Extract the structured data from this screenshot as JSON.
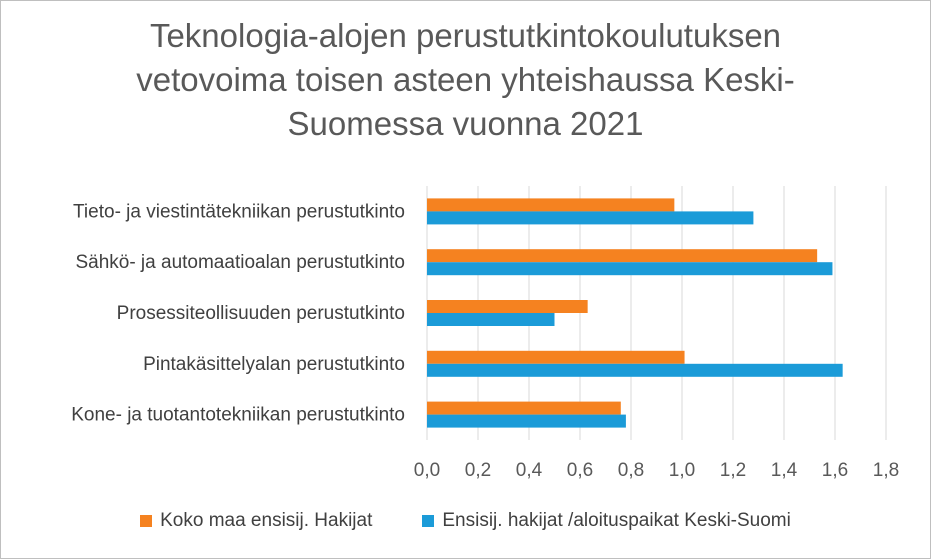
{
  "chart_data": {
    "type": "bar",
    "orientation": "horizontal",
    "title_lines": [
      "Teknologia-alojen perustutkintokoulutuksen",
      "vetovoima toisen asteen yhteishaussa Keski-",
      "Suomessa vuonna 2021"
    ],
    "categories": [
      "Tieto- ja viestintätekniikan perustutkinto",
      "Sähkö- ja automaatioalan perustutkinto",
      "Prosessiteollisuuden perustutkinto",
      "Pintakäsittelyalan perustutkinto",
      "Kone- ja tuotantotekniikan perustutkinto"
    ],
    "series": [
      {
        "name": "Koko maa ensisij. Hakijat",
        "color": "#F58220",
        "values": [
          0.97,
          1.53,
          0.63,
          1.01,
          0.76
        ]
      },
      {
        "name": "Ensisij. hakijat /aloituspaikat Keski-Suomi",
        "color": "#1B9BD8",
        "values": [
          1.28,
          1.59,
          0.5,
          1.63,
          0.78
        ]
      }
    ],
    "xlim": [
      0,
      1.8
    ],
    "xticks": [
      "0,0",
      "0,2",
      "0,4",
      "0,6",
      "0,8",
      "1,0",
      "1,2",
      "1,4",
      "1,6",
      "1,8"
    ],
    "xlabel": "",
    "ylabel": "",
    "grid": "vertical",
    "legend_position": "bottom"
  }
}
